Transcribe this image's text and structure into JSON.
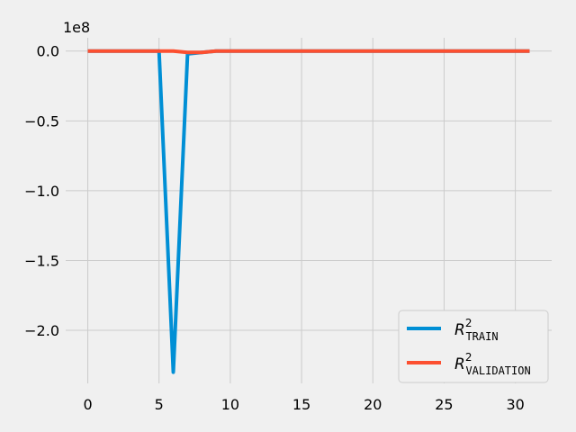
{
  "chart_data": {
    "type": "line",
    "title": "",
    "xlabel": "",
    "ylabel": "",
    "y_offset_text": "1e8",
    "xlim": [
      -1.55,
      32.55
    ],
    "ylim": [
      -2.38,
      0.095
    ],
    "x_ticks": [
      0,
      5,
      10,
      15,
      20,
      25,
      30
    ],
    "y_ticks": [
      0.0,
      -0.5,
      -1.0,
      -1.5,
      -2.0
    ],
    "y_tick_labels": [
      "0.0",
      "−0.5",
      "−1.0",
      "−1.5",
      "−2.0"
    ],
    "grid": true,
    "legend_position": "lower-right",
    "series": [
      {
        "name": "R",
        "name_sup": "2",
        "name_sub": "TRAIN",
        "color": "#008fd5",
        "x": [
          0,
          1,
          2,
          3,
          4,
          5,
          6,
          7,
          8,
          9,
          10,
          11,
          12,
          13,
          14,
          15,
          16,
          17,
          18,
          19,
          20,
          21,
          22,
          23,
          24,
          25,
          26,
          27,
          28,
          29,
          30,
          31
        ],
        "values": [
          0,
          0,
          0,
          0,
          0,
          0,
          -2.3,
          -0.02,
          -0.01,
          0,
          0,
          0,
          0,
          0,
          0,
          0,
          0,
          0,
          0,
          0,
          0,
          0,
          0,
          0,
          0,
          0,
          0,
          0,
          0,
          0,
          0,
          0
        ]
      },
      {
        "name": "R",
        "name_sup": "2",
        "name_sub": "VALIDATION",
        "color": "#fc4f30",
        "x": [
          0,
          1,
          2,
          3,
          4,
          5,
          6,
          7,
          8,
          9,
          10,
          11,
          12,
          13,
          14,
          15,
          16,
          17,
          18,
          19,
          20,
          21,
          22,
          23,
          24,
          25,
          26,
          27,
          28,
          29,
          30,
          31
        ],
        "values": [
          0,
          0,
          0,
          0,
          0,
          0,
          0,
          -0.01,
          -0.01,
          0,
          0,
          0,
          0,
          0,
          0,
          0,
          0,
          0,
          0,
          0,
          0,
          0,
          0,
          0,
          0,
          0,
          0,
          0,
          0,
          0,
          0,
          0
        ]
      }
    ]
  }
}
